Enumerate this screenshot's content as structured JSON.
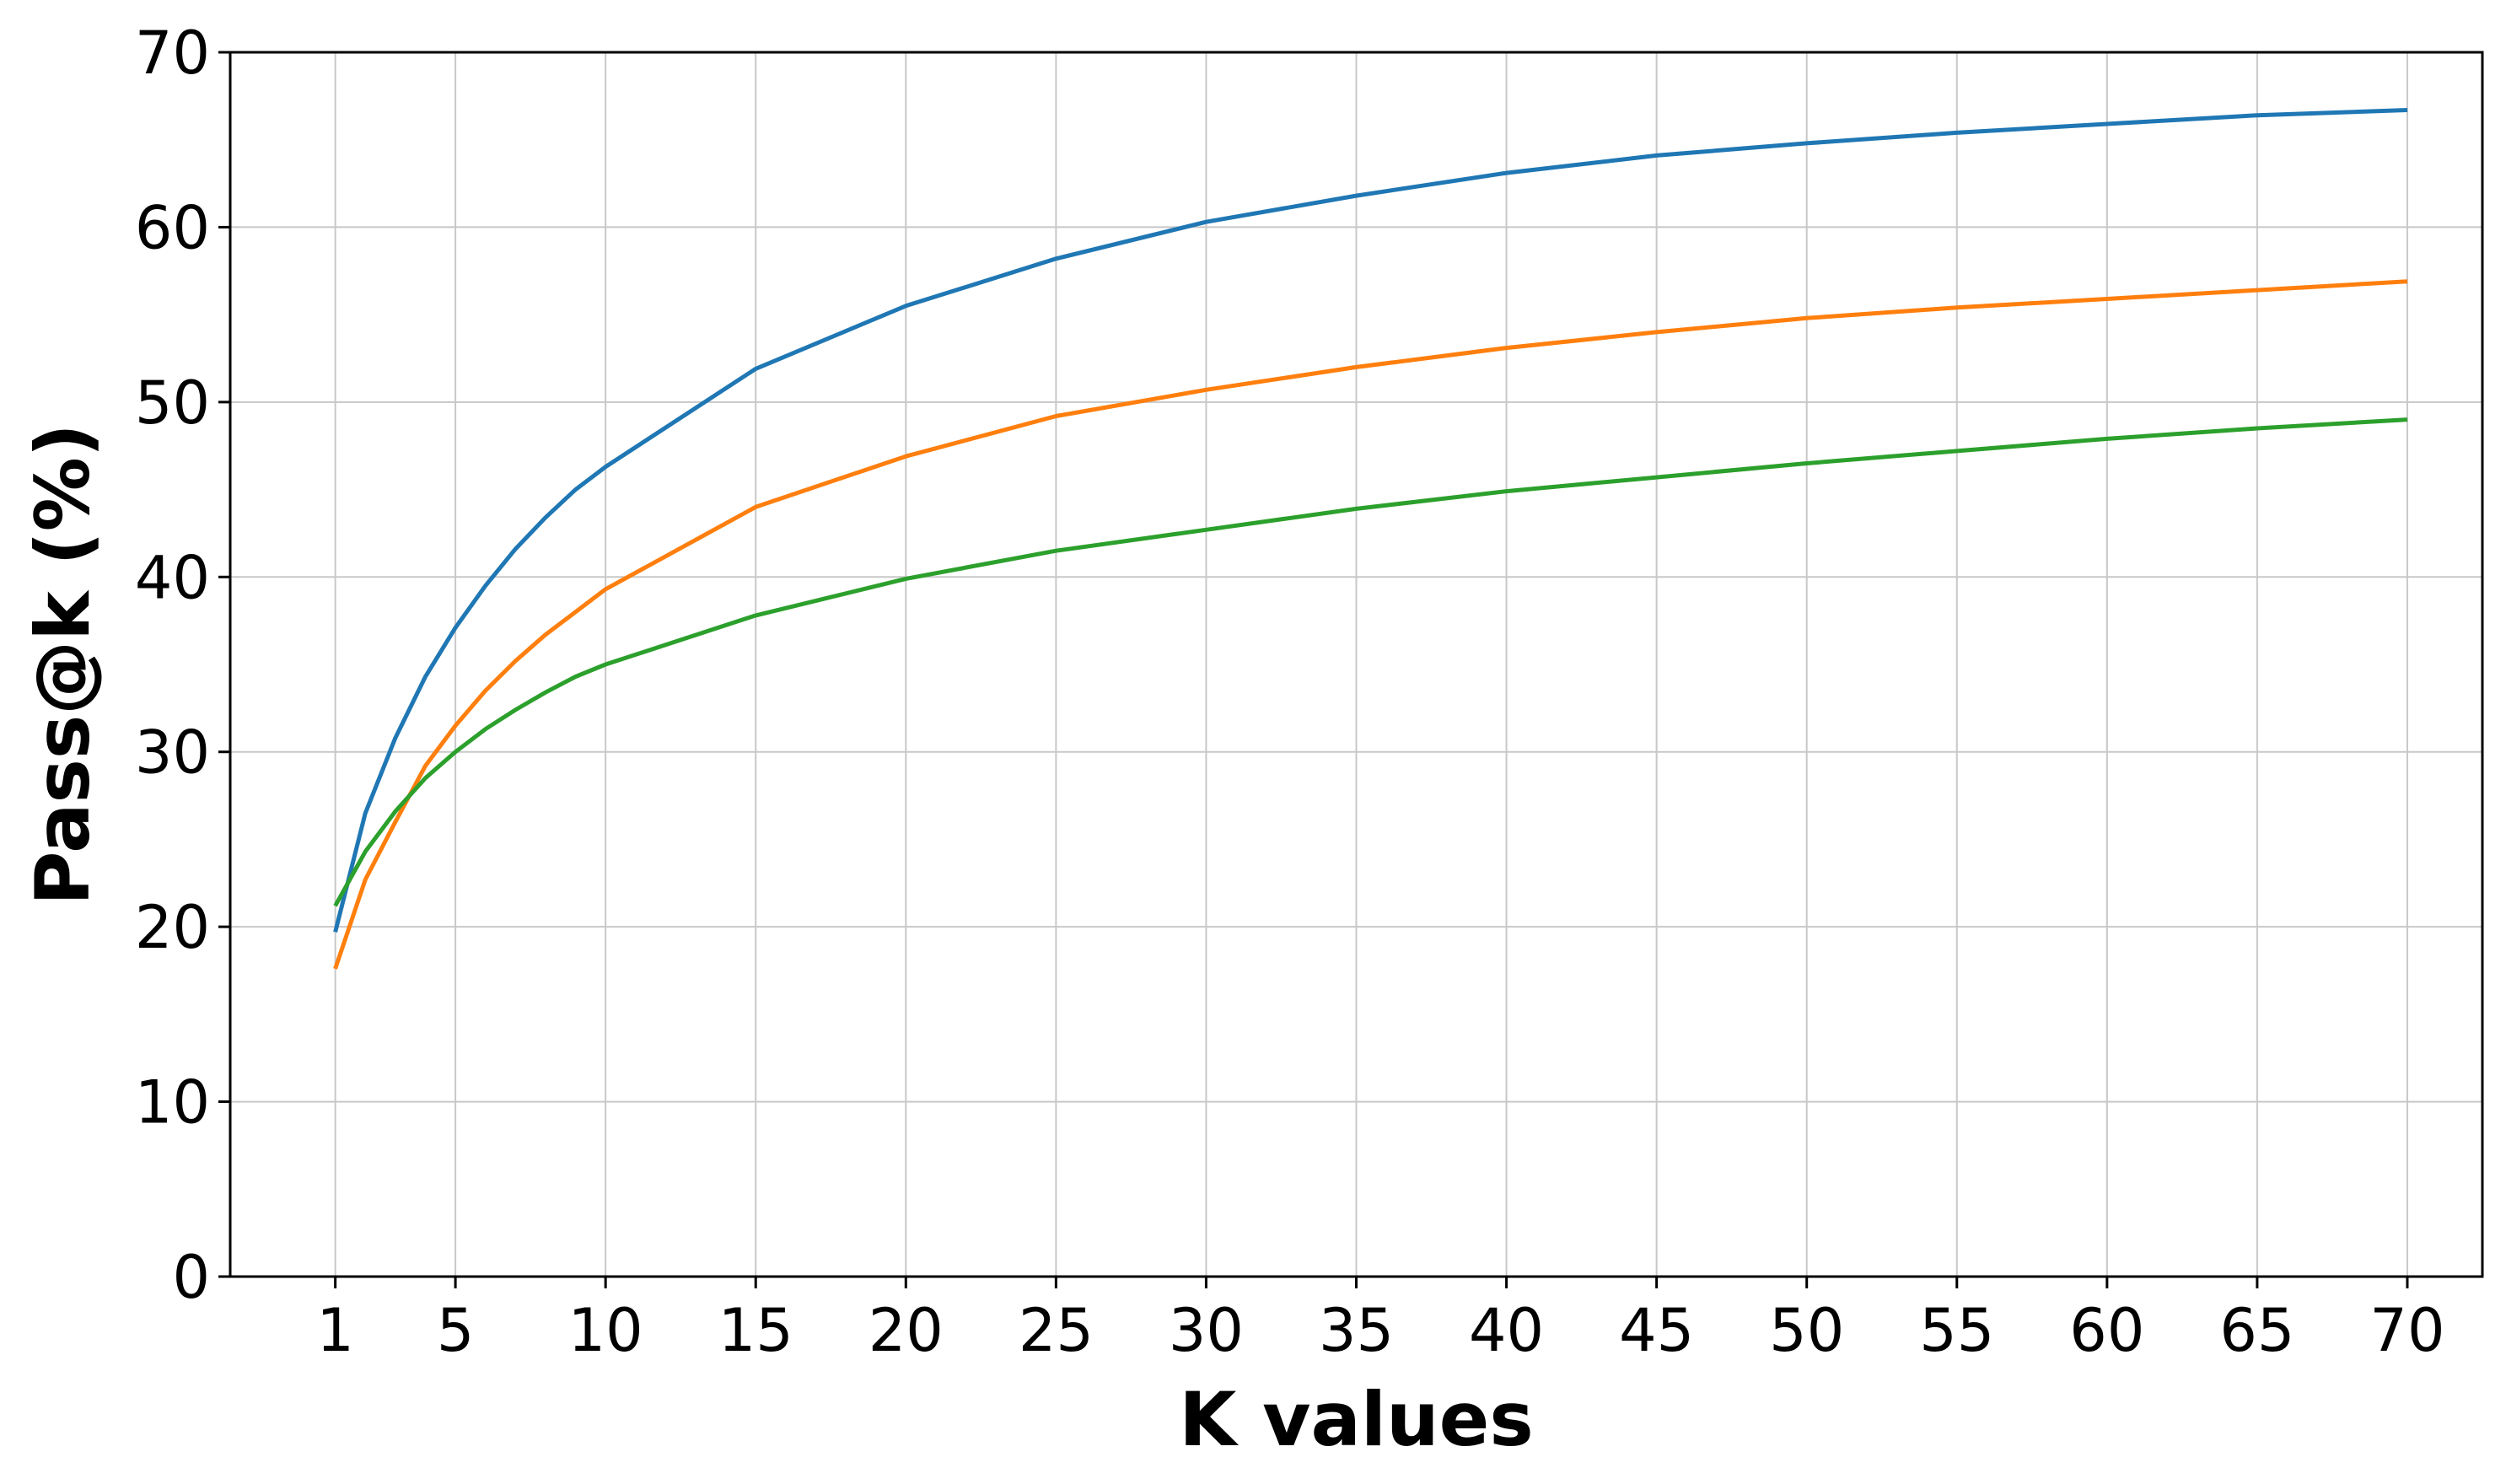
{
  "chart_data": {
    "type": "line",
    "title": "",
    "xlabel": "K values",
    "ylabel": "Pass@k (%)",
    "xlim": [
      -2.5,
      72.5
    ],
    "ylim": [
      0,
      70
    ],
    "x_ticks": [
      1,
      5,
      10,
      15,
      20,
      25,
      30,
      35,
      40,
      45,
      50,
      55,
      60,
      65,
      70
    ],
    "y_ticks": [
      0,
      10,
      20,
      30,
      40,
      50,
      60,
      70
    ],
    "x_tick_labels": [
      "1",
      "5",
      "10",
      "15",
      "20",
      "25",
      "30",
      "35",
      "40",
      "45",
      "50",
      "55",
      "60",
      "65",
      "70"
    ],
    "y_tick_labels": [
      "0",
      "10",
      "20",
      "30",
      "40",
      "50",
      "60",
      "70"
    ],
    "grid": true,
    "legend": "none",
    "x": [
      1,
      2,
      3,
      4,
      5,
      6,
      7,
      8,
      9,
      10,
      15,
      20,
      25,
      30,
      35,
      40,
      45,
      50,
      55,
      60,
      65,
      70
    ],
    "series": [
      {
        "color": "#1f77b4",
        "values": [
          19.7,
          26.5,
          30.8,
          34.3,
          37.1,
          39.5,
          41.6,
          43.4,
          45.0,
          46.3,
          51.9,
          55.5,
          58.2,
          60.3,
          61.8,
          63.1,
          64.1,
          64.8,
          65.4,
          65.9,
          66.4,
          66.7
        ]
      },
      {
        "color": "#ff7f0e",
        "values": [
          17.6,
          22.7,
          26.0,
          29.2,
          31.5,
          33.5,
          35.2,
          36.7,
          38.0,
          39.3,
          44.0,
          46.9,
          49.2,
          50.7,
          52.0,
          53.1,
          54.0,
          54.8,
          55.4,
          55.9,
          56.4,
          56.9
        ]
      },
      {
        "color": "#2ca02c",
        "values": [
          21.2,
          24.3,
          26.6,
          28.5,
          30.0,
          31.3,
          32.4,
          33.4,
          34.3,
          35.0,
          37.8,
          39.9,
          41.5,
          42.7,
          43.9,
          44.9,
          45.7,
          46.5,
          47.2,
          47.9,
          48.5,
          49.0
        ]
      }
    ]
  }
}
